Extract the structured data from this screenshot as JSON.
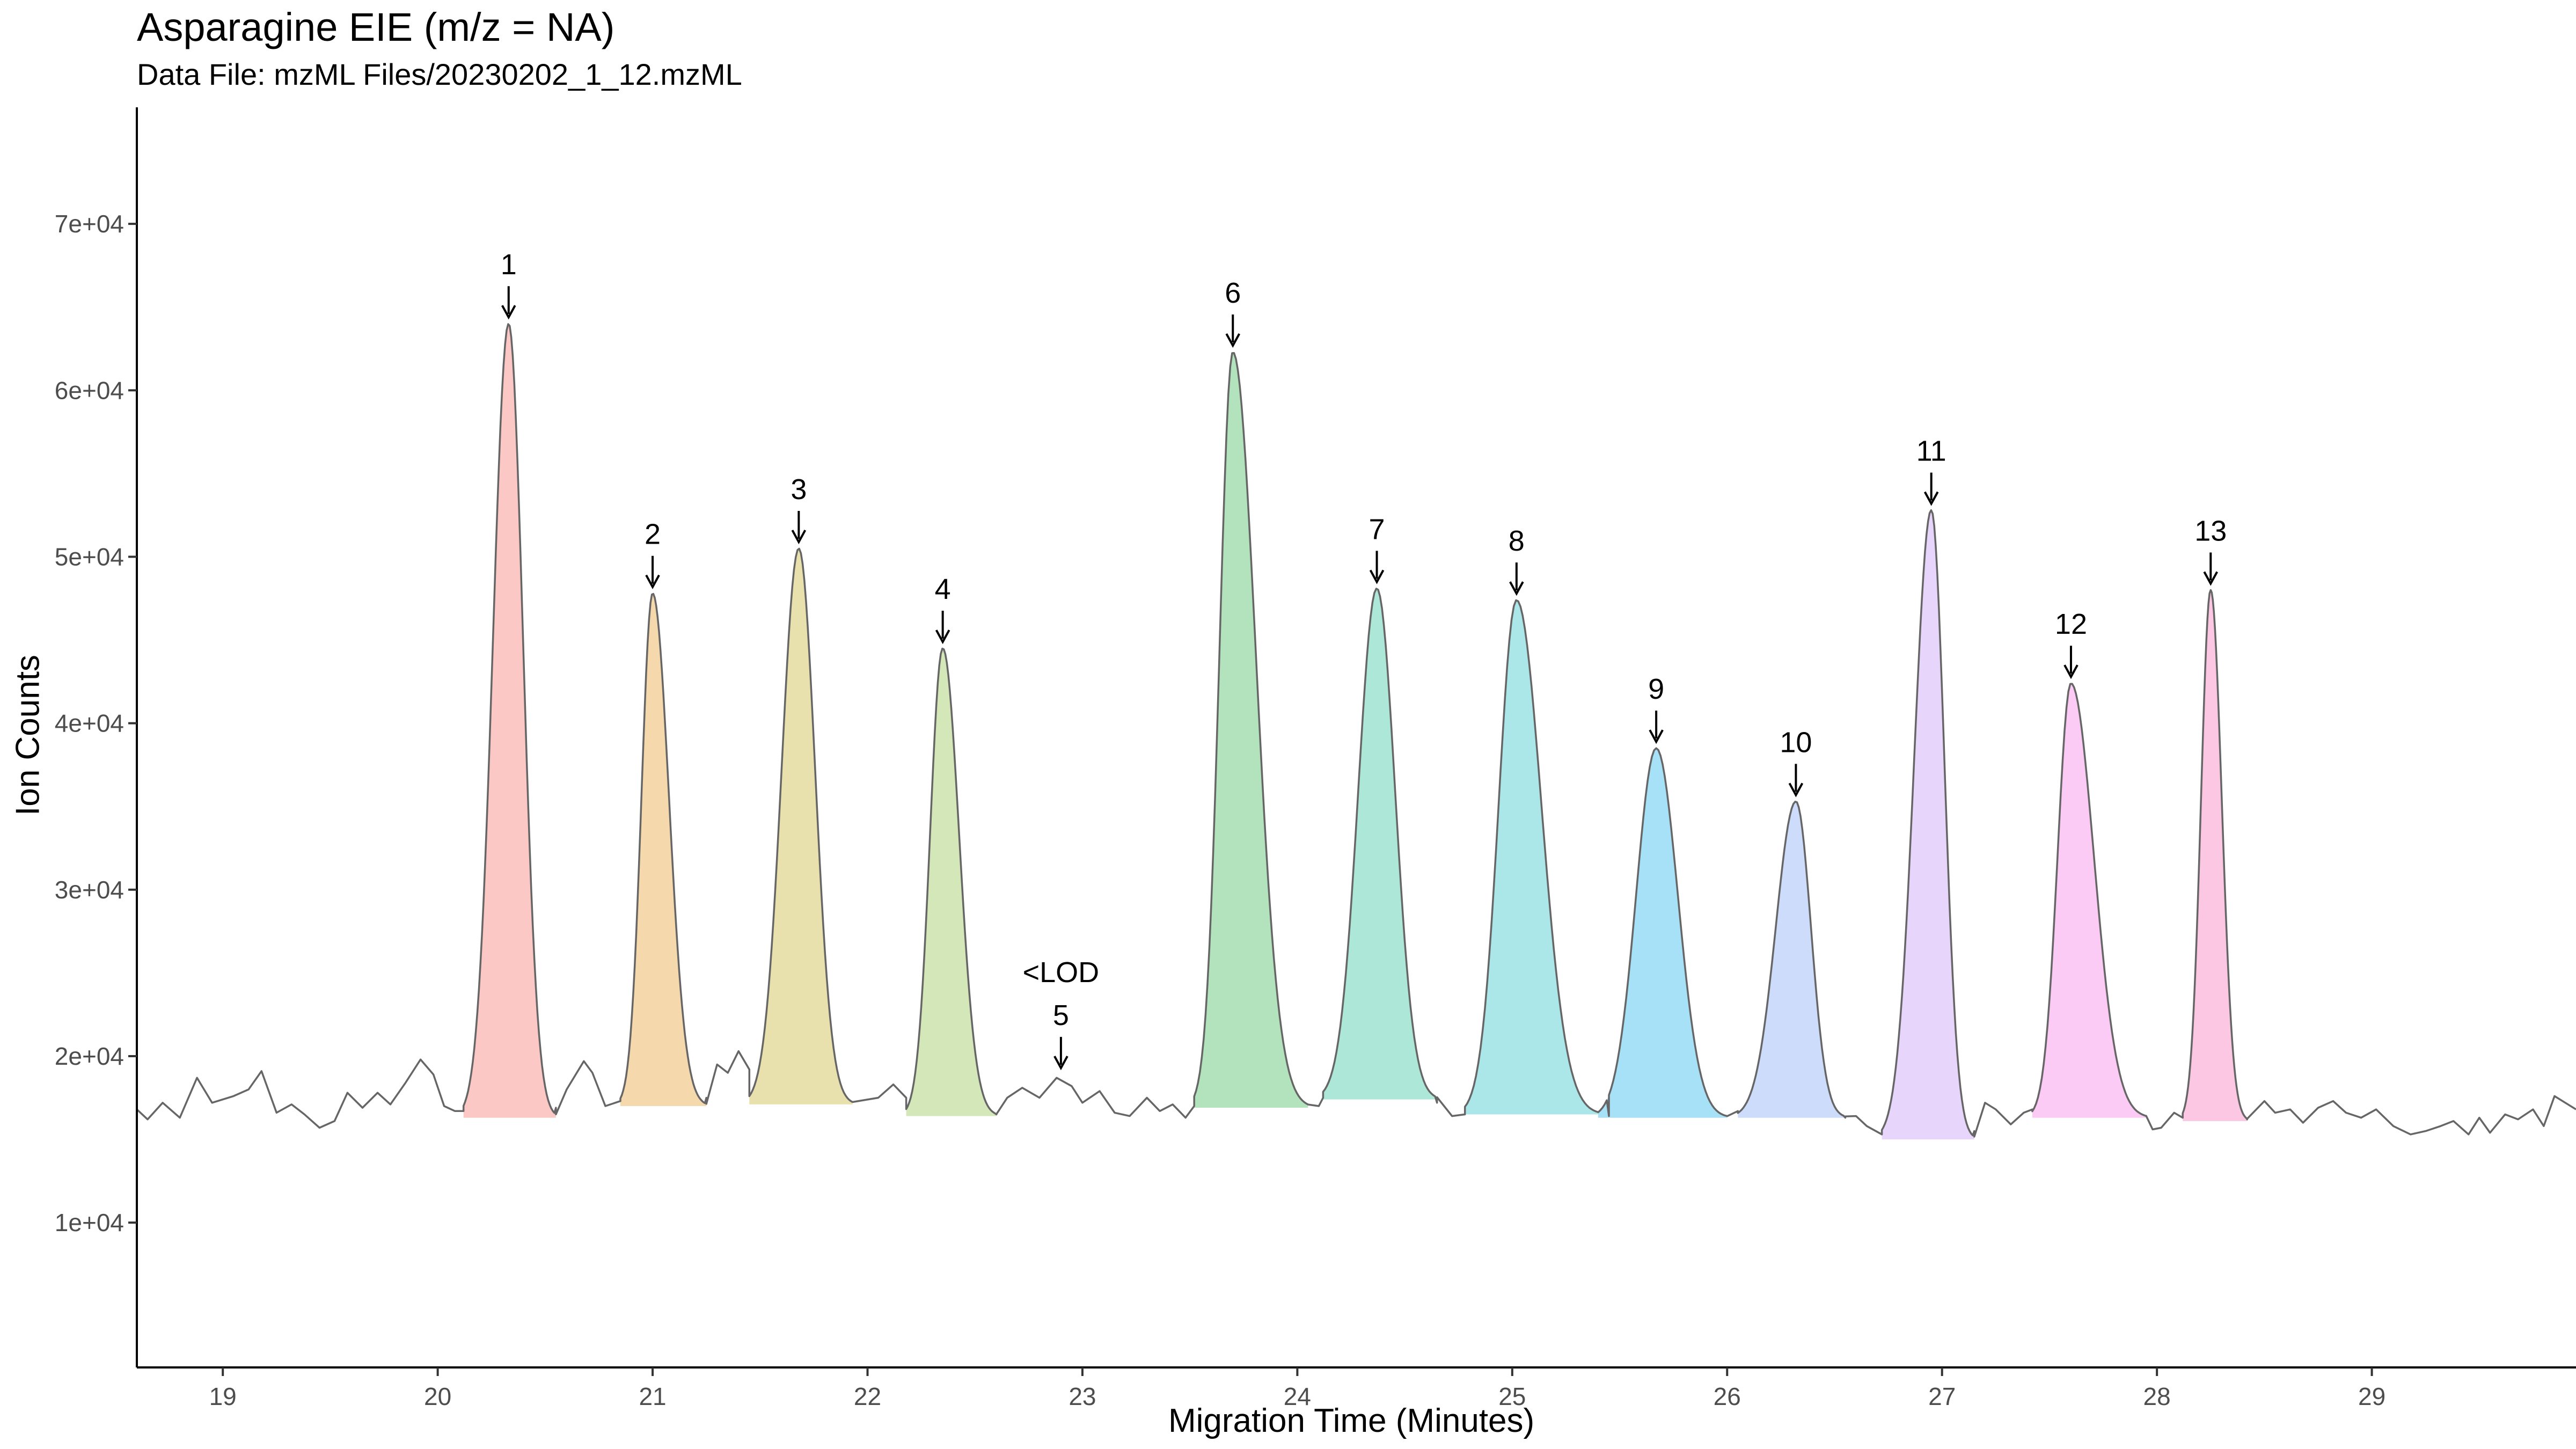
{
  "chart_data": {
    "type": "line",
    "title": "Asparagine EIE (m/z = NA)",
    "subtitle": "Data File:  mzML Files/20230202_1_12.mzML",
    "xlabel": "Migration Time (Minutes)",
    "ylabel": "Ion Counts",
    "xlim": [
      18.6,
      29.95
    ],
    "ylim": [
      1300,
      77000
    ],
    "x_ticks": [
      19,
      20,
      21,
      22,
      23,
      24,
      25,
      26,
      27,
      28,
      29
    ],
    "x_tick_labels": [
      "19",
      "20",
      "21",
      "22",
      "23",
      "24",
      "25",
      "26",
      "27",
      "28",
      "29"
    ],
    "y_ticks": [
      10000,
      20000,
      30000,
      40000,
      50000,
      60000,
      70000
    ],
    "y_tick_labels": [
      "1e+04",
      "2e+04",
      "3e+04",
      "4e+04",
      "5e+04",
      "6e+04",
      "7e+04"
    ],
    "grid": false,
    "legend": "none",
    "line_color": "#666666",
    "baseline_points": [
      [
        18.6,
        16800
      ],
      [
        18.65,
        16200
      ],
      [
        18.72,
        17200
      ],
      [
        18.8,
        16300
      ],
      [
        18.88,
        18700
      ],
      [
        18.95,
        17200
      ],
      [
        19.05,
        17600
      ],
      [
        19.12,
        18000
      ],
      [
        19.18,
        19100
      ],
      [
        19.25,
        16600
      ],
      [
        19.32,
        17100
      ],
      [
        19.38,
        16500
      ],
      [
        19.45,
        15700
      ],
      [
        19.52,
        16100
      ],
      [
        19.58,
        17800
      ],
      [
        19.65,
        16900
      ],
      [
        19.72,
        17800
      ],
      [
        19.78,
        17100
      ],
      [
        19.85,
        18400
      ],
      [
        19.92,
        19800
      ],
      [
        19.98,
        18900
      ],
      [
        20.03,
        17000
      ],
      [
        20.08,
        16700
      ],
      [
        20.12,
        16700
      ],
      [
        20.55,
        16900
      ],
      [
        20.6,
        18000
      ],
      [
        20.68,
        19700
      ],
      [
        20.72,
        19000
      ],
      [
        20.78,
        17000
      ],
      [
        20.85,
        17300
      ],
      [
        21.25,
        17500
      ],
      [
        21.3,
        19500
      ],
      [
        21.35,
        19000
      ],
      [
        21.4,
        20300
      ],
      [
        21.45,
        19200
      ],
      [
        22.05,
        17500
      ],
      [
        22.12,
        18300
      ],
      [
        22.18,
        17500
      ],
      [
        22.6,
        16500
      ],
      [
        22.65,
        17500
      ],
      [
        22.72,
        18100
      ],
      [
        22.8,
        17500
      ],
      [
        22.88,
        18700
      ],
      [
        22.95,
        18200
      ],
      [
        23.0,
        17200
      ],
      [
        23.08,
        17900
      ],
      [
        23.15,
        16600
      ],
      [
        23.22,
        16400
      ],
      [
        23.3,
        17500
      ],
      [
        23.36,
        16700
      ],
      [
        23.42,
        17100
      ],
      [
        23.48,
        16300
      ],
      [
        23.52,
        17000
      ],
      [
        24.1,
        17000
      ],
      [
        24.12,
        17500
      ],
      [
        24.65,
        17200
      ],
      [
        24.72,
        16400
      ],
      [
        24.78,
        16500
      ],
      [
        25.45,
        16400
      ],
      [
        26.0,
        16400
      ],
      [
        26.05,
        16700
      ],
      [
        26.55,
        16300
      ],
      [
        26.6,
        16400
      ],
      [
        26.65,
        15800
      ],
      [
        26.72,
        15300
      ],
      [
        27.15,
        15500
      ],
      [
        27.2,
        17200
      ],
      [
        27.25,
        16800
      ],
      [
        27.32,
        15900
      ],
      [
        27.38,
        16600
      ],
      [
        27.42,
        16800
      ],
      [
        27.95,
        16400
      ],
      [
        27.98,
        15600
      ],
      [
        28.02,
        15700
      ],
      [
        28.08,
        16600
      ],
      [
        28.12,
        16300
      ],
      [
        28.42,
        16200
      ],
      [
        28.5,
        17300
      ],
      [
        28.55,
        16600
      ],
      [
        28.62,
        16800
      ],
      [
        28.68,
        16000
      ],
      [
        28.75,
        16900
      ],
      [
        28.82,
        17300
      ],
      [
        28.88,
        16600
      ],
      [
        28.95,
        16300
      ],
      [
        29.02,
        16800
      ],
      [
        29.1,
        15800
      ],
      [
        29.18,
        15300
      ],
      [
        29.25,
        15500
      ],
      [
        29.32,
        15800
      ],
      [
        29.38,
        16100
      ],
      [
        29.45,
        15300
      ],
      [
        29.5,
        16300
      ],
      [
        29.55,
        15400
      ],
      [
        29.62,
        16500
      ],
      [
        29.68,
        16200
      ],
      [
        29.75,
        16800
      ],
      [
        29.8,
        15800
      ],
      [
        29.85,
        17600
      ],
      [
        29.9,
        17200
      ],
      [
        29.95,
        16800
      ]
    ],
    "peaks": [
      {
        "label": "1",
        "apex_x": 20.33,
        "apex_y": 64000,
        "start_x": 20.12,
        "end_x": 20.55,
        "base_y": 16300,
        "color": "#F8766D"
      },
      {
        "label": "2",
        "apex_x": 21.0,
        "apex_y": 47800,
        "start_x": 20.85,
        "end_x": 21.25,
        "base_y": 17000,
        "color": "#E7A033"
      },
      {
        "label": "3",
        "apex_x": 21.68,
        "apex_y": 50500,
        "start_x": 21.45,
        "end_x": 21.93,
        "base_y": 17100,
        "color": "#C7B531"
      },
      {
        "label": "4",
        "apex_x": 22.35,
        "apex_y": 44500,
        "start_x": 22.18,
        "end_x": 22.6,
        "base_y": 16400,
        "color": "#93C34E"
      },
      {
        "label": "6",
        "apex_x": 23.7,
        "apex_y": 62300,
        "start_x": 23.52,
        "end_x": 24.05,
        "base_y": 16900,
        "color": "#3EB95A"
      },
      {
        "label": "7",
        "apex_x": 24.37,
        "apex_y": 48100,
        "start_x": 24.12,
        "end_x": 24.65,
        "base_y": 17400,
        "color": "#33C39E"
      },
      {
        "label": "8",
        "apex_x": 25.02,
        "apex_y": 47400,
        "start_x": 24.78,
        "end_x": 25.4,
        "base_y": 16500,
        "color": "#2EC0C9"
      },
      {
        "label": "9",
        "apex_x": 25.67,
        "apex_y": 38500,
        "start_x": 25.4,
        "end_x": 26.0,
        "base_y": 16300,
        "color": "#22B4EA"
      },
      {
        "label": "10",
        "apex_x": 26.32,
        "apex_y": 35300,
        "start_x": 26.05,
        "end_x": 26.55,
        "base_y": 16300,
        "color": "#84A8F8"
      },
      {
        "label": "11",
        "apex_x": 26.95,
        "apex_y": 52800,
        "start_x": 26.72,
        "end_x": 27.15,
        "base_y": 15000,
        "color": "#C596F8"
      },
      {
        "label": "12",
        "apex_x": 27.6,
        "apex_y": 42400,
        "start_x": 27.42,
        "end_x": 27.95,
        "base_y": 16300,
        "color": "#F47AE6"
      },
      {
        "label": "13",
        "apex_x": 28.25,
        "apex_y": 48000,
        "start_x": 28.12,
        "end_x": 28.42,
        "base_y": 16100,
        "color": "#F872B8"
      }
    ],
    "annotations": [
      {
        "label": "1",
        "x": 20.33,
        "y": 64000
      },
      {
        "label": "2",
        "x": 21.0,
        "y": 47800
      },
      {
        "label": "3",
        "x": 21.68,
        "y": 50500
      },
      {
        "label": "4",
        "x": 22.35,
        "y": 44500
      },
      {
        "label": "5",
        "x": 22.9,
        "y": 18900,
        "note": "<LOD"
      },
      {
        "label": "6",
        "x": 23.7,
        "y": 62300
      },
      {
        "label": "7",
        "x": 24.37,
        "y": 48100
      },
      {
        "label": "8",
        "x": 25.02,
        "y": 47400
      },
      {
        "label": "9",
        "x": 25.67,
        "y": 38500
      },
      {
        "label": "10",
        "x": 26.32,
        "y": 35300
      },
      {
        "label": "11",
        "x": 26.95,
        "y": 52800
      },
      {
        "label": "12",
        "x": 27.6,
        "y": 42400
      },
      {
        "label": "13",
        "x": 28.25,
        "y": 48000
      }
    ]
  }
}
